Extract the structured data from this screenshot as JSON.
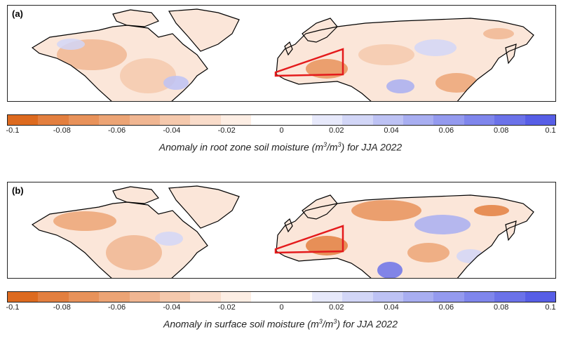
{
  "panels": [
    {
      "label": "(a)",
      "colorbar_title_prefix": "Anomaly in root zone soil moisture (m",
      "colorbar_title_mid": "/m",
      "colorbar_title_suffix": ") for JJA 2022",
      "unit_exponent": "3"
    },
    {
      "label": "(b)",
      "colorbar_title_prefix": "Anomaly in surface soil moisture (m",
      "colorbar_title_mid": "/m",
      "colorbar_title_suffix": ") for JJA 2022",
      "unit_exponent": "3"
    }
  ],
  "colorbar": {
    "range": [
      -0.1,
      0.1
    ],
    "ticks": [
      "-0.1",
      "-0.08",
      "-0.06",
      "-0.04",
      "-0.02",
      "0",
      "0.02",
      "0.04",
      "0.06",
      "0.08",
      "0.1"
    ],
    "colors": [
      "#dd6a1f",
      "#e37f3f",
      "#e8925a",
      "#eca475",
      "#f0b692",
      "#f5c9ad",
      "#f9dcca",
      "#fdeee4",
      "#ffffff",
      "#ffffff",
      "#e7e9fb",
      "#d2d6f7",
      "#bdc2f4",
      "#a8aef1",
      "#949aef",
      "#7f86ec",
      "#6b72e9",
      "#575ee6"
    ]
  },
  "colors": {
    "drought_region_outline": "#e41a1c",
    "coastline": "#000000",
    "negative_anomaly": "#e8925a",
    "positive_anomaly": "#8d93ee"
  }
}
